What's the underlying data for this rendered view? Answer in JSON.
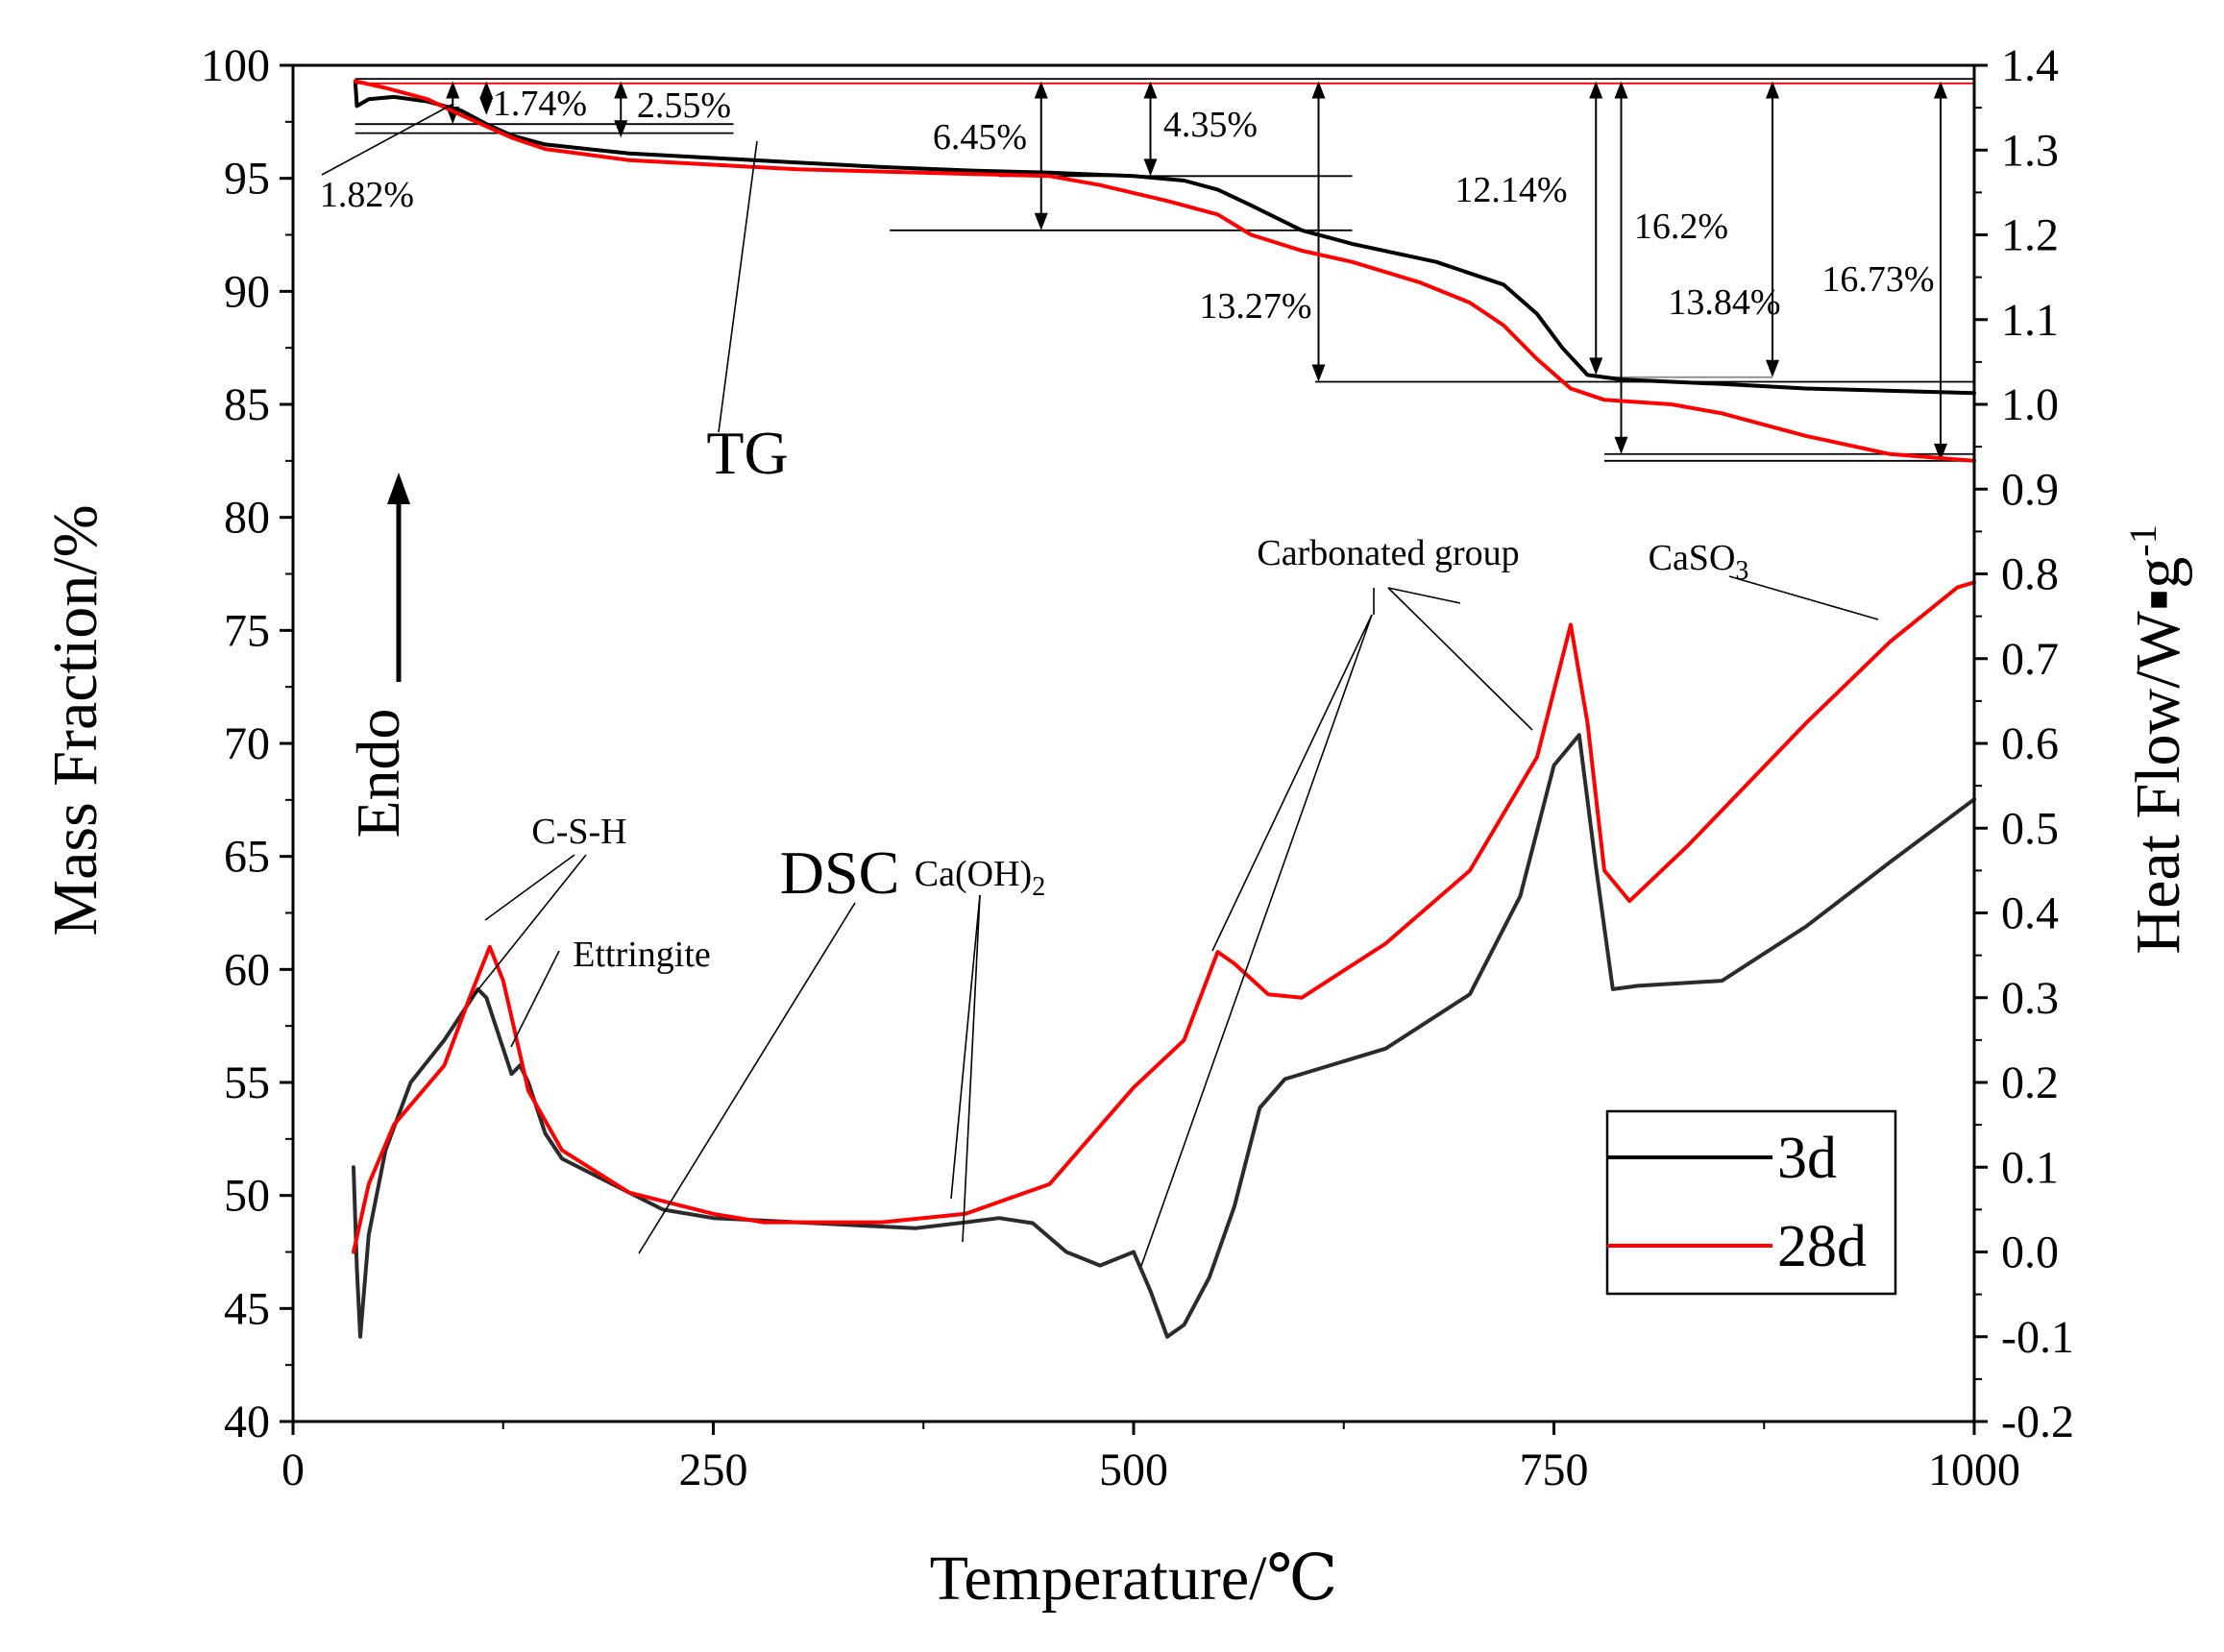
{
  "chart_data": {
    "type": "line",
    "x": {
      "label": "Temperature/℃",
      "range": [
        0,
        1000
      ],
      "ticks": [
        0,
        250,
        500,
        750,
        1000
      ]
    },
    "y_left": {
      "label": "Mass Fraction/%",
      "range": [
        40,
        100
      ],
      "ticks": [
        40,
        45,
        50,
        55,
        60,
        65,
        70,
        75,
        80,
        85,
        90,
        95,
        100
      ]
    },
    "y_right": {
      "label": "Heat Flow/W▪g",
      "label_sup": "-1",
      "range": [
        -0.2,
        1.4
      ],
      "ticks": [
        "-0.2",
        "-0.1",
        "0.0",
        "0.1",
        "0.2",
        "0.3",
        "0.4",
        "0.5",
        "0.6",
        "0.7",
        "0.8",
        "0.9",
        "1.0",
        "1.1",
        "1.2",
        "1.3",
        "1.4"
      ]
    },
    "legend": [
      {
        "name": "3d",
        "color": "#000000"
      },
      {
        "name": "28d",
        "color": "#ff0000"
      }
    ],
    "series": [
      {
        "name": "3d TG",
        "kind": "TG",
        "color": "#000000",
        "points": [
          [
            37,
            99.3
          ],
          [
            38,
            98.2
          ],
          [
            45,
            98.5
          ],
          [
            60,
            98.6
          ],
          [
            80,
            98.4
          ],
          [
            100,
            98.0
          ],
          [
            115,
            97.4
          ],
          [
            130,
            96.9
          ],
          [
            150,
            96.5
          ],
          [
            200,
            96.1
          ],
          [
            250,
            95.9
          ],
          [
            300,
            95.7
          ],
          [
            350,
            95.5
          ],
          [
            400,
            95.35
          ],
          [
            450,
            95.25
          ],
          [
            500,
            95.1
          ],
          [
            530,
            94.9
          ],
          [
            550,
            94.5
          ],
          [
            570,
            93.8
          ],
          [
            600,
            92.7
          ],
          [
            630,
            92.1
          ],
          [
            680,
            91.3
          ],
          [
            720,
            90.3
          ],
          [
            740,
            89.0
          ],
          [
            755,
            87.5
          ],
          [
            770,
            86.3
          ],
          [
            790,
            86.1
          ],
          [
            850,
            85.9
          ],
          [
            900,
            85.7
          ],
          [
            950,
            85.6
          ],
          [
            1000,
            85.5
          ]
        ]
      },
      {
        "name": "28d TG",
        "kind": "TG",
        "color": "#ff0000",
        "points": [
          [
            37,
            99.3
          ],
          [
            55,
            99.0
          ],
          [
            80,
            98.5
          ],
          [
            100,
            97.8
          ],
          [
            115,
            97.3
          ],
          [
            130,
            96.8
          ],
          [
            150,
            96.3
          ],
          [
            200,
            95.8
          ],
          [
            250,
            95.6
          ],
          [
            300,
            95.4
          ],
          [
            350,
            95.3
          ],
          [
            400,
            95.2
          ],
          [
            450,
            95.1
          ],
          [
            480,
            94.7
          ],
          [
            520,
            94.0
          ],
          [
            550,
            93.4
          ],
          [
            570,
            92.5
          ],
          [
            600,
            91.8
          ],
          [
            630,
            91.3
          ],
          [
            670,
            90.4
          ],
          [
            700,
            89.5
          ],
          [
            720,
            88.5
          ],
          [
            740,
            87.0
          ],
          [
            760,
            85.7
          ],
          [
            780,
            85.2
          ],
          [
            820,
            85.0
          ],
          [
            850,
            84.6
          ],
          [
            900,
            83.6
          ],
          [
            950,
            82.8
          ],
          [
            1000,
            82.5
          ]
        ]
      },
      {
        "name": "3d DSC",
        "kind": "DSC",
        "color": "#2b2b2b",
        "points": [
          [
            36,
            0.1
          ],
          [
            38,
            -0.02
          ],
          [
            40,
            -0.1
          ],
          [
            45,
            0.02
          ],
          [
            55,
            0.12
          ],
          [
            70,
            0.2
          ],
          [
            90,
            0.25
          ],
          [
            100,
            0.28
          ],
          [
            110,
            0.31
          ],
          [
            115,
            0.3
          ],
          [
            120,
            0.27
          ],
          [
            130,
            0.21
          ],
          [
            135,
            0.22
          ],
          [
            140,
            0.2
          ],
          [
            150,
            0.14
          ],
          [
            160,
            0.11
          ],
          [
            180,
            0.09
          ],
          [
            200,
            0.07
          ],
          [
            220,
            0.05
          ],
          [
            250,
            0.04
          ],
          [
            300,
            0.035
          ],
          [
            350,
            0.03
          ],
          [
            370,
            0.028
          ],
          [
            400,
            0.035
          ],
          [
            420,
            0.04
          ],
          [
            440,
            0.03
          ],
          [
            460,
            0.0
          ],
          [
            480,
            -0.02
          ],
          [
            500,
            0.0
          ],
          [
            510,
            -0.05
          ],
          [
            520,
            -0.1
          ],
          [
            530,
            -0.09
          ],
          [
            545,
            -0.03
          ],
          [
            560,
            0.05
          ],
          [
            575,
            0.17
          ],
          [
            590,
            0.2
          ],
          [
            650,
            0.24
          ],
          [
            700,
            0.3
          ],
          [
            730,
            0.42
          ],
          [
            750,
            0.57
          ],
          [
            765,
            0.61
          ],
          [
            775,
            0.45
          ],
          [
            785,
            0.31
          ],
          [
            800,
            0.31
          ],
          [
            850,
            0.32
          ],
          [
            900,
            0.38
          ],
          [
            950,
            0.46
          ],
          [
            1000,
            0.53
          ]
        ]
      },
      {
        "name": "28d DSC",
        "kind": "DSC",
        "color": "#ff0000",
        "points": [
          [
            36,
            0.0
          ],
          [
            45,
            0.08
          ],
          [
            60,
            0.15
          ],
          [
            90,
            0.22
          ],
          [
            105,
            0.3
          ],
          [
            117,
            0.36
          ],
          [
            125,
            0.32
          ],
          [
            140,
            0.19
          ],
          [
            160,
            0.12
          ],
          [
            200,
            0.07
          ],
          [
            250,
            0.045
          ],
          [
            280,
            0.035
          ],
          [
            350,
            0.035
          ],
          [
            400,
            0.045
          ],
          [
            450,
            0.08
          ],
          [
            500,
            0.19
          ],
          [
            530,
            0.25
          ],
          [
            550,
            0.35
          ],
          [
            560,
            0.34
          ],
          [
            580,
            0.3
          ],
          [
            600,
            0.3
          ],
          [
            650,
            0.36
          ],
          [
            700,
            0.45
          ],
          [
            740,
            0.58
          ],
          [
            760,
            0.74
          ],
          [
            770,
            0.62
          ],
          [
            780,
            0.45
          ],
          [
            795,
            0.41
          ],
          [
            830,
            0.48
          ],
          [
            900,
            0.62
          ],
          [
            950,
            0.72
          ],
          [
            990,
            0.78
          ],
          [
            1000,
            0.79
          ]
        ]
      }
    ],
    "annotations": {
      "percent_labels": [
        "1.82%",
        "1.74%",
        "2.55%",
        "6.45%",
        "4.35%",
        "13.27%",
        "12.14%",
        "16.2%",
        "13.84%",
        "16.73%"
      ],
      "tg_label": "TG",
      "dsc_label": "DSC",
      "endo_label": "Endo",
      "peak_labels": {
        "csh": "C-S-H",
        "ettringite": "Ettringite",
        "caoh2_main": "Ca(OH)",
        "caoh2_sub": "2",
        "carbonated": "Carbonated group",
        "caso3_main": "CaSO",
        "caso3_sub": "3"
      }
    }
  }
}
